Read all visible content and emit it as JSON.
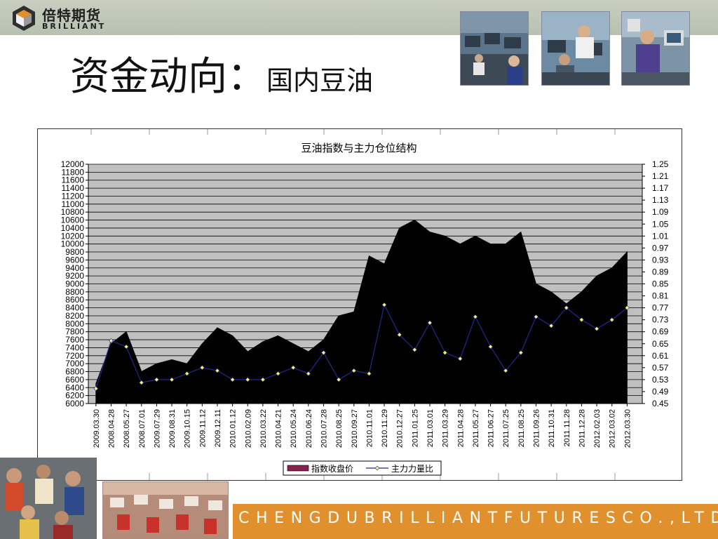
{
  "logo": {
    "cn": "倍特期货",
    "en": "BRILLIANT"
  },
  "title": {
    "main": "资金动向：",
    "sub": "国内豆油"
  },
  "footer": {
    "company": "CHENGDUBRILLIANTFUTURESCO.,LTD."
  },
  "colors": {
    "topbar": "#c1c9bb",
    "accent_orange": "#e0902c",
    "plot_bg": "#c0c0c0",
    "series_price": "#000000",
    "series_ratio_line": "#1c2b8c",
    "series_ratio_marker": "#fff06a"
  },
  "chart_data": {
    "type": "area",
    "title": "豆油指数与主力仓位结构",
    "xlabel": "",
    "ylabel": "",
    "grid": true,
    "legend_position": "bottom",
    "ylim": [
      6000,
      12000
    ],
    "y_ticks": [
      "12000",
      "11800",
      "11600",
      "11400",
      "11200",
      "11000",
      "10800",
      "10600",
      "10400",
      "10200",
      "10000",
      "9800",
      "9600",
      "9400",
      "9200",
      "9000",
      "8800",
      "8600",
      "8400",
      "8200",
      "8000",
      "7800",
      "7600",
      "7400",
      "7200",
      "7000",
      "6800",
      "6600",
      "6400",
      "6200",
      "6000"
    ],
    "y2lim": [
      0.45,
      1.25
    ],
    "y2_ticks": [
      "1.25",
      "1.21",
      "1.17",
      "1.13",
      "1.09",
      "1.05",
      "1.01",
      "0.97",
      "0.93",
      "0.89",
      "0.85",
      "0.81",
      "0.77",
      "0.73",
      "0.69",
      "0.65",
      "0.61",
      "0.57",
      "0.53",
      "0.49",
      "0.45"
    ],
    "x": [
      "2009.03.30",
      "2008.04.28",
      "2008.05.27",
      "2008.07.01",
      "2009.07.29",
      "2009.08.31",
      "2009.10.15",
      "2009.11.12",
      "2009.12.11",
      "2010.01.12",
      "2010.02.09",
      "2010.03.22",
      "2010.04.21",
      "2010.05.24",
      "2010.06.24",
      "2010.07.28",
      "2010.08.25",
      "2010.09.27",
      "2010.11.01",
      "2010.11.29",
      "2010.12.27",
      "2011.01.25",
      "2011.03.01",
      "2011.03.29",
      "2011.04.28",
      "2011.05.27",
      "2011.06.27",
      "2011.07.25",
      "2011.08.25",
      "2011.09.26",
      "2011.10.31",
      "2011.11.28",
      "2011.12.28",
      "2012.02.03",
      "2012.03.02",
      "2012.03.30"
    ],
    "series": [
      {
        "name": "指数收盘价",
        "axis": "left",
        "style": "area",
        "values": [
          6500,
          7500,
          7800,
          6800,
          7000,
          7100,
          7000,
          7500,
          7900,
          7700,
          7300,
          7550,
          7700,
          7500,
          7300,
          7600,
          8200,
          8300,
          9700,
          9500,
          10400,
          10600,
          10300,
          10200,
          10000,
          10200,
          10000,
          10000,
          10300,
          9000,
          8800,
          8500,
          8800,
          9200,
          9400,
          9800
        ]
      },
      {
        "name": "主力力量比",
        "axis": "right",
        "style": "line-marker",
        "values": [
          0.5,
          0.66,
          0.64,
          0.52,
          0.53,
          0.53,
          0.55,
          0.57,
          0.56,
          0.53,
          0.53,
          0.53,
          0.55,
          0.57,
          0.55,
          0.62,
          0.53,
          0.56,
          0.55,
          0.78,
          0.68,
          0.63,
          0.72,
          0.62,
          0.6,
          0.74,
          0.64,
          0.56,
          0.62,
          0.74,
          0.71,
          0.77,
          0.73,
          0.7,
          0.73,
          0.77
        ]
      }
    ]
  }
}
